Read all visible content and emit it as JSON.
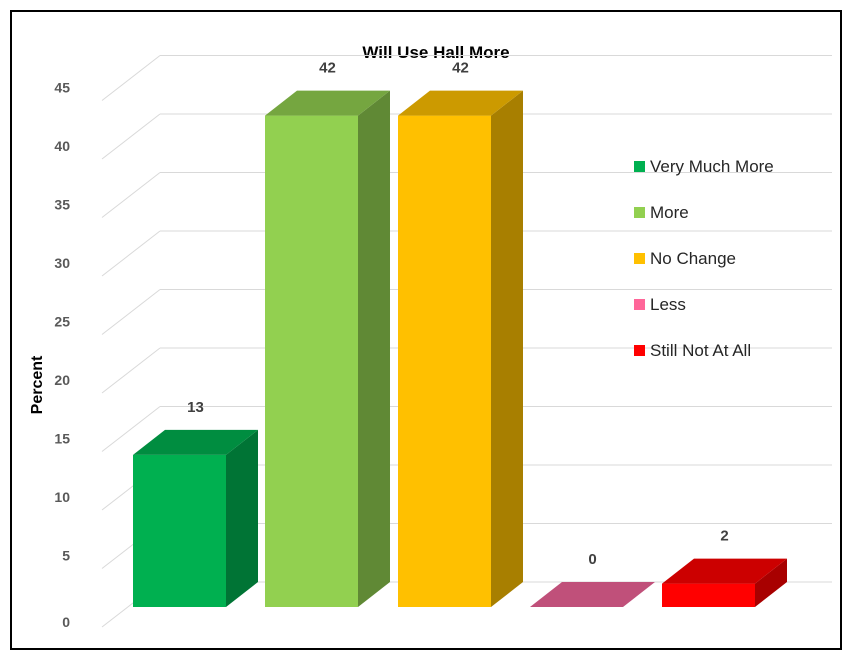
{
  "chart_data": {
    "type": "bar",
    "title": "Will Use Hall More",
    "ylabel": "Percent",
    "xlabel": "",
    "ylim": [
      0,
      45
    ],
    "yticks": [
      0,
      5,
      10,
      15,
      20,
      25,
      30,
      35,
      40,
      45
    ],
    "grid": true,
    "three_d": true,
    "legend_position": "right",
    "categories": [
      "Very Much More",
      "More",
      "No Change",
      "Less",
      "Still Not At All"
    ],
    "values": [
      13,
      42,
      42,
      0,
      2
    ],
    "data_labels": [
      "13",
      "42",
      "42",
      "0",
      "2"
    ],
    "colors": [
      "#00B050",
      "#92D050",
      "#FFC000",
      "#FF6699",
      "#FF0000"
    ]
  }
}
